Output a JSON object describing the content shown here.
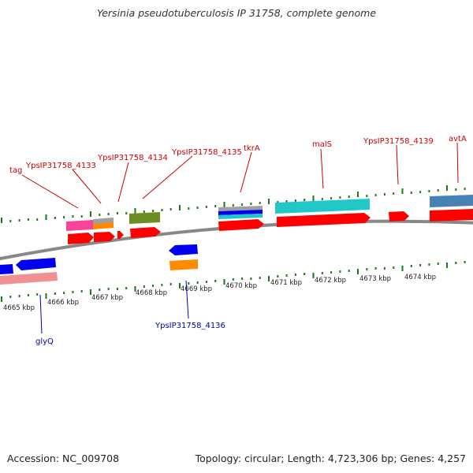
{
  "title": "Yersinia pseudotuberculosis IP 31758, complete genome",
  "footer": {
    "accession": "Accession: NC_009708",
    "topology": "Topology: circular; Length: 4,723,306 bp; Genes: 4,257"
  },
  "colors": {
    "backbone": "#888888",
    "tick": "#1a7a1a",
    "forward_label": "#cc0000",
    "reverse_label": "#0000aa",
    "cds_red": "#ff0000",
    "blue": "#0000ee",
    "pink": "#f9439a",
    "salmon": "#f09090",
    "orange": "#ff8c00",
    "gray": "#a0a0a0",
    "olive": "#6b8e23",
    "cyan": "#22c8c8",
    "steelblue": "#4682b4"
  },
  "coordinate_labels": [
    "4665 kbp",
    "4666 kbp",
    "4667 kbp",
    "4668 kbp",
    "4669 kbp",
    "4670 kbp",
    "4671 kbp",
    "4672 kbp",
    "4673 kbp",
    "4674 kbp"
  ],
  "forward_gene_labels": [
    "tag",
    "YpsIP31758_4133",
    "YpsIP31758_4134",
    "YpsIP31758_4135",
    "tkrA",
    "malS",
    "YpsIP31758_4139",
    "avtA"
  ],
  "reverse_gene_labels": [
    "glyQ",
    "YpsIP31758_4136"
  ]
}
